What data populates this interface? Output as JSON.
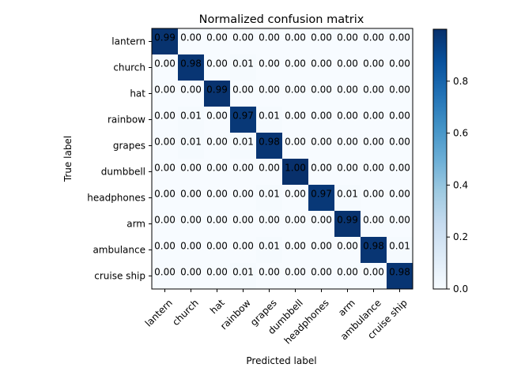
{
  "chart_data": {
    "type": "heatmap",
    "title": "Normalized confusion matrix",
    "xlabel": "Predicted label",
    "ylabel": "True label",
    "classes": [
      "lantern",
      "church",
      "hat",
      "rainbow",
      "grapes",
      "dumbbell",
      "headphones",
      "arm",
      "ambulance",
      "cruise ship"
    ],
    "matrix": [
      [
        0.99,
        0.0,
        0.0,
        0.0,
        0.0,
        0.0,
        0.0,
        0.0,
        0.0,
        0.0
      ],
      [
        0.0,
        0.98,
        0.0,
        0.01,
        0.0,
        0.0,
        0.0,
        0.0,
        0.0,
        0.0
      ],
      [
        0.0,
        0.0,
        0.99,
        0.0,
        0.0,
        0.0,
        0.0,
        0.0,
        0.0,
        0.0
      ],
      [
        0.0,
        0.01,
        0.0,
        0.97,
        0.01,
        0.0,
        0.0,
        0.0,
        0.0,
        0.0
      ],
      [
        0.0,
        0.01,
        0.0,
        0.01,
        0.98,
        0.0,
        0.0,
        0.0,
        0.0,
        0.0
      ],
      [
        0.0,
        0.0,
        0.0,
        0.0,
        0.0,
        1.0,
        0.0,
        0.0,
        0.0,
        0.0
      ],
      [
        0.0,
        0.0,
        0.0,
        0.0,
        0.01,
        0.0,
        0.97,
        0.01,
        0.0,
        0.0
      ],
      [
        0.0,
        0.0,
        0.0,
        0.0,
        0.0,
        0.0,
        0.0,
        0.99,
        0.0,
        0.0
      ],
      [
        0.0,
        0.0,
        0.0,
        0.0,
        0.01,
        0.0,
        0.0,
        0.0,
        0.98,
        0.01
      ],
      [
        0.0,
        0.0,
        0.0,
        0.01,
        0.0,
        0.0,
        0.0,
        0.0,
        0.0,
        0.98
      ]
    ],
    "value_format": "0.00",
    "colormap": "Blues",
    "colorbar": {
      "range": [
        0,
        1.0
      ],
      "ticks": [
        0.0,
        0.2,
        0.4,
        0.6,
        0.8
      ],
      "tick_labels": [
        "0.0",
        "0.2",
        "0.4",
        "0.6",
        "0.8"
      ]
    },
    "colors": {
      "low": "#f7fbff",
      "high": "#08306b",
      "text_light": "#ffffff",
      "text_dark": "#000000"
    }
  }
}
